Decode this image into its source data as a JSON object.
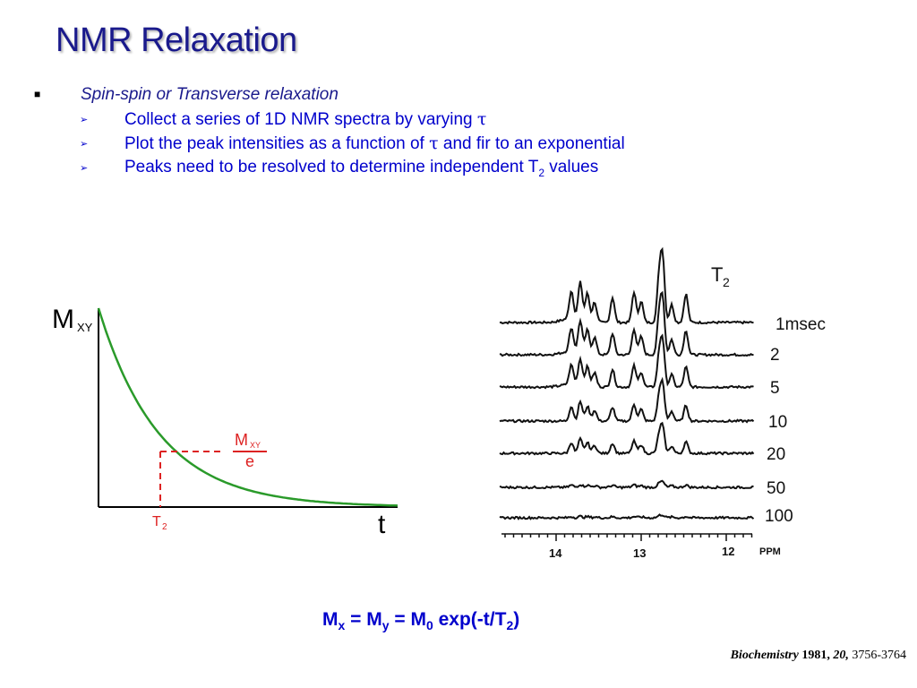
{
  "slide": {
    "title": "NMR Relaxation",
    "bullet_main": "Spin-spin or Transverse relaxation",
    "sub_bullets": [
      {
        "text": "Collect a series of 1D NMR spectra by varying ",
        "tau": "τ",
        "tail": ""
      },
      {
        "text": "Plot the peak intensities as a function of ",
        "tau": "τ",
        "tail": " and fir to an exponential"
      },
      {
        "text": "Peaks need to be resolved to determine independent T",
        "sub": "2",
        "tail": " values"
      }
    ],
    "equation": {
      "mx": "M",
      "mx_sub": "x",
      "eq1": " = M",
      "my_sub": "y",
      "eq2": " = M",
      "m0_sub": "0",
      "rest": " exp(-t/T",
      "t2_sub": "2",
      "close": ")"
    },
    "citation": {
      "journal": "Biochemistry",
      "year": " 1981,",
      "volume": " 20,",
      "pages": " 3756-3764"
    }
  },
  "decay_plot": {
    "y_label": "M",
    "y_label_sub": "XY",
    "x_label": "t",
    "t2_label": "T",
    "t2_sub": "2",
    "ratio_num": "M",
    "ratio_num_sub": "XY",
    "ratio_den": "e",
    "curve_color": "#2a9a2a",
    "marker_color": "#dd2222"
  },
  "spectra": {
    "legend_title": "T",
    "legend_title_sub": "2",
    "trace_labels": [
      "1msec",
      "2",
      "5",
      "10",
      "20",
      "50",
      "100"
    ],
    "axis_ticks": [
      "14",
      "13",
      "12"
    ],
    "axis_unit": "PPM"
  }
}
